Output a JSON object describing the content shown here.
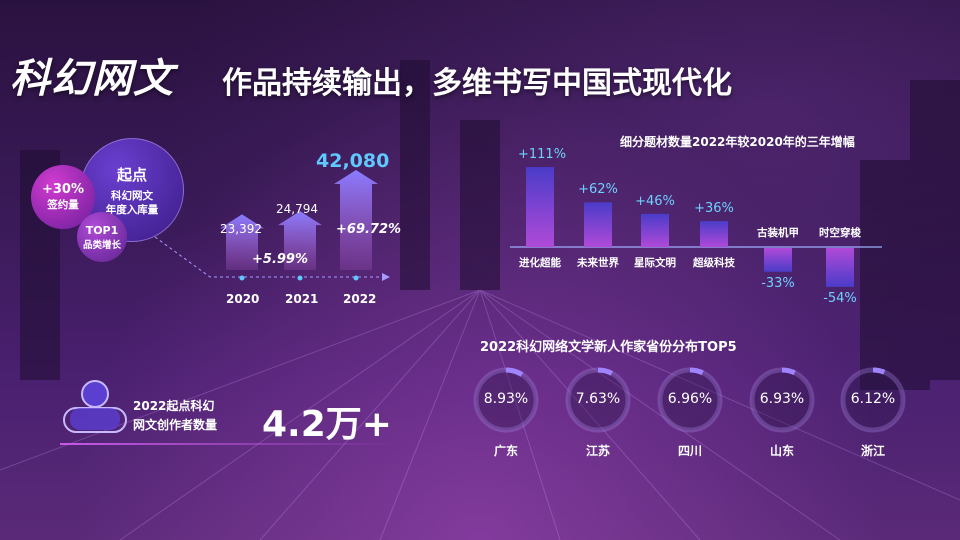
{
  "title": {
    "main": "科幻网文",
    "sub": "作品持续输出，多维书写中国式现代化"
  },
  "bubbles": {
    "main": {
      "title": "起点",
      "line1": "科幻网文",
      "line2": "年度入库量"
    },
    "signing": {
      "value": "+30%",
      "label": "签约量"
    },
    "top1": {
      "value": "TOP1",
      "label": "品类增长"
    }
  },
  "authors": {
    "label_line1": "2022起点科幻",
    "label_line2": "网文创作者数量",
    "value": "4.2万+"
  },
  "colors": {
    "accent_blue": "#5ec8ff",
    "ring_progress": "#a084ff",
    "bar_gradient_top": "#4a3cc8",
    "bar_gradient_bottom": "#b04ad8"
  },
  "chart_data": [
    {
      "type": "bar",
      "categories": [
        "2020",
        "2021",
        "2022"
      ],
      "values": [
        23392,
        24794,
        42080
      ],
      "labels": [
        "23,392",
        "24,794",
        "42,080"
      ],
      "growth": [
        "+5.99%",
        "+69.72%"
      ]
    },
    {
      "type": "bar",
      "title": "细分题材数量2022年较2020年的三年增幅",
      "categories": [
        "进化超能",
        "未来世界",
        "星际文明",
        "超级科技",
        "古装机甲",
        "时空穿梭"
      ],
      "values": [
        111,
        62,
        46,
        36,
        -33,
        -54
      ],
      "labels": [
        "+111%",
        "+62%",
        "+46%",
        "+36%",
        "-33%",
        "-54%"
      ]
    },
    {
      "type": "pie",
      "title": "2022科幻网络文学新人作家省份分布TOP5",
      "categories": [
        "广东",
        "江苏",
        "四川",
        "山东",
        "浙江"
      ],
      "values": [
        8.93,
        7.63,
        6.96,
        6.93,
        6.12
      ],
      "labels": [
        "8.93%",
        "7.63%",
        "6.96%",
        "6.93%",
        "6.12%"
      ]
    }
  ]
}
